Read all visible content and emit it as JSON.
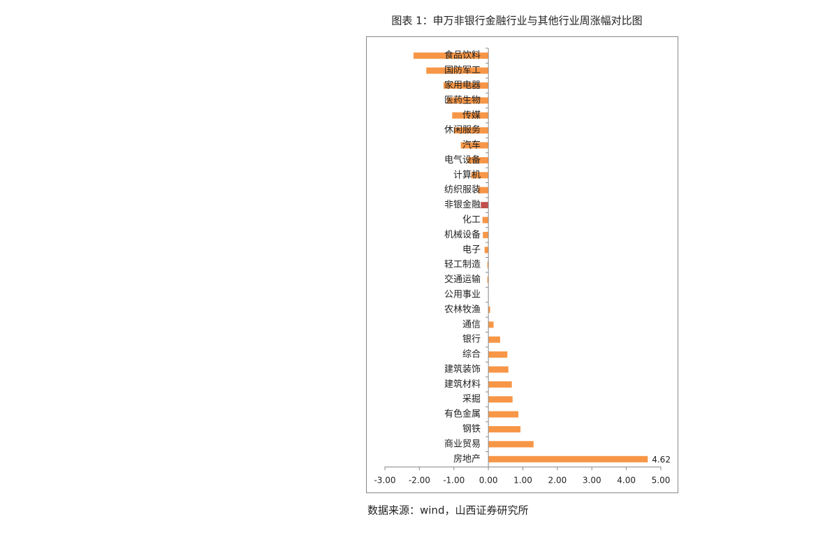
{
  "chart_data": {
    "type": "barh",
    "title": "图表 1：申万非银行金融行业与其他行业周涨幅对比图",
    "source": "数据来源：wind，山西证券研究所",
    "categories": [
      "食品饮料",
      "国防军工",
      "家用电器",
      "医药生物",
      "传媒",
      "休闲服务",
      "汽车",
      "电气设备",
      "计算机",
      "纺织服装",
      "非银金融",
      "化工",
      "机械设备",
      "电子",
      "轻工制造",
      "交通运输",
      "公用事业",
      "农林牧渔",
      "通信",
      "银行",
      "综合",
      "建筑装饰",
      "建筑材料",
      "采掘",
      "有色金属",
      "钢铁",
      "商业贸易",
      "房地产"
    ],
    "values": [
      -2.17,
      -1.8,
      -1.3,
      -1.2,
      -1.05,
      -1.0,
      -0.8,
      -0.6,
      -0.5,
      -0.3,
      -0.22,
      -0.17,
      -0.16,
      -0.11,
      -0.03,
      -0.03,
      -0.01,
      0.05,
      0.15,
      0.34,
      0.55,
      0.58,
      0.68,
      0.7,
      0.87,
      0.93,
      1.31,
      4.62
    ],
    "value_labels": [
      null,
      null,
      null,
      null,
      null,
      null,
      null,
      null,
      null,
      null,
      null,
      null,
      null,
      null,
      null,
      null,
      null,
      null,
      null,
      null,
      null,
      null,
      null,
      null,
      null,
      null,
      null,
      "4.62"
    ],
    "colors": [
      "#f79646",
      "#f79646",
      "#f79646",
      "#f79646",
      "#f79646",
      "#f79646",
      "#f79646",
      "#f79646",
      "#f79646",
      "#f79646",
      "#c0504d",
      "#f79646",
      "#f79646",
      "#f79646",
      "#f79646",
      "#f79646",
      "#f79646",
      "#f79646",
      "#f79646",
      "#f79646",
      "#f79646",
      "#f79646",
      "#f79646",
      "#f79646",
      "#f79646",
      "#f79646",
      "#f79646",
      "#f79646"
    ],
    "xlim": [
      -3,
      5
    ],
    "xticks": [
      {
        "value": -3,
        "label": "-3.00"
      },
      {
        "value": -2,
        "label": "-2.00"
      },
      {
        "value": -1,
        "label": "-1.00"
      },
      {
        "value": 0,
        "label": "0.00"
      },
      {
        "value": 1,
        "label": "1.00"
      },
      {
        "value": 2,
        "label": "2.00"
      },
      {
        "value": 3,
        "label": "3.00"
      },
      {
        "value": 4,
        "label": "4.00"
      },
      {
        "value": 5,
        "label": "5.00"
      }
    ]
  }
}
